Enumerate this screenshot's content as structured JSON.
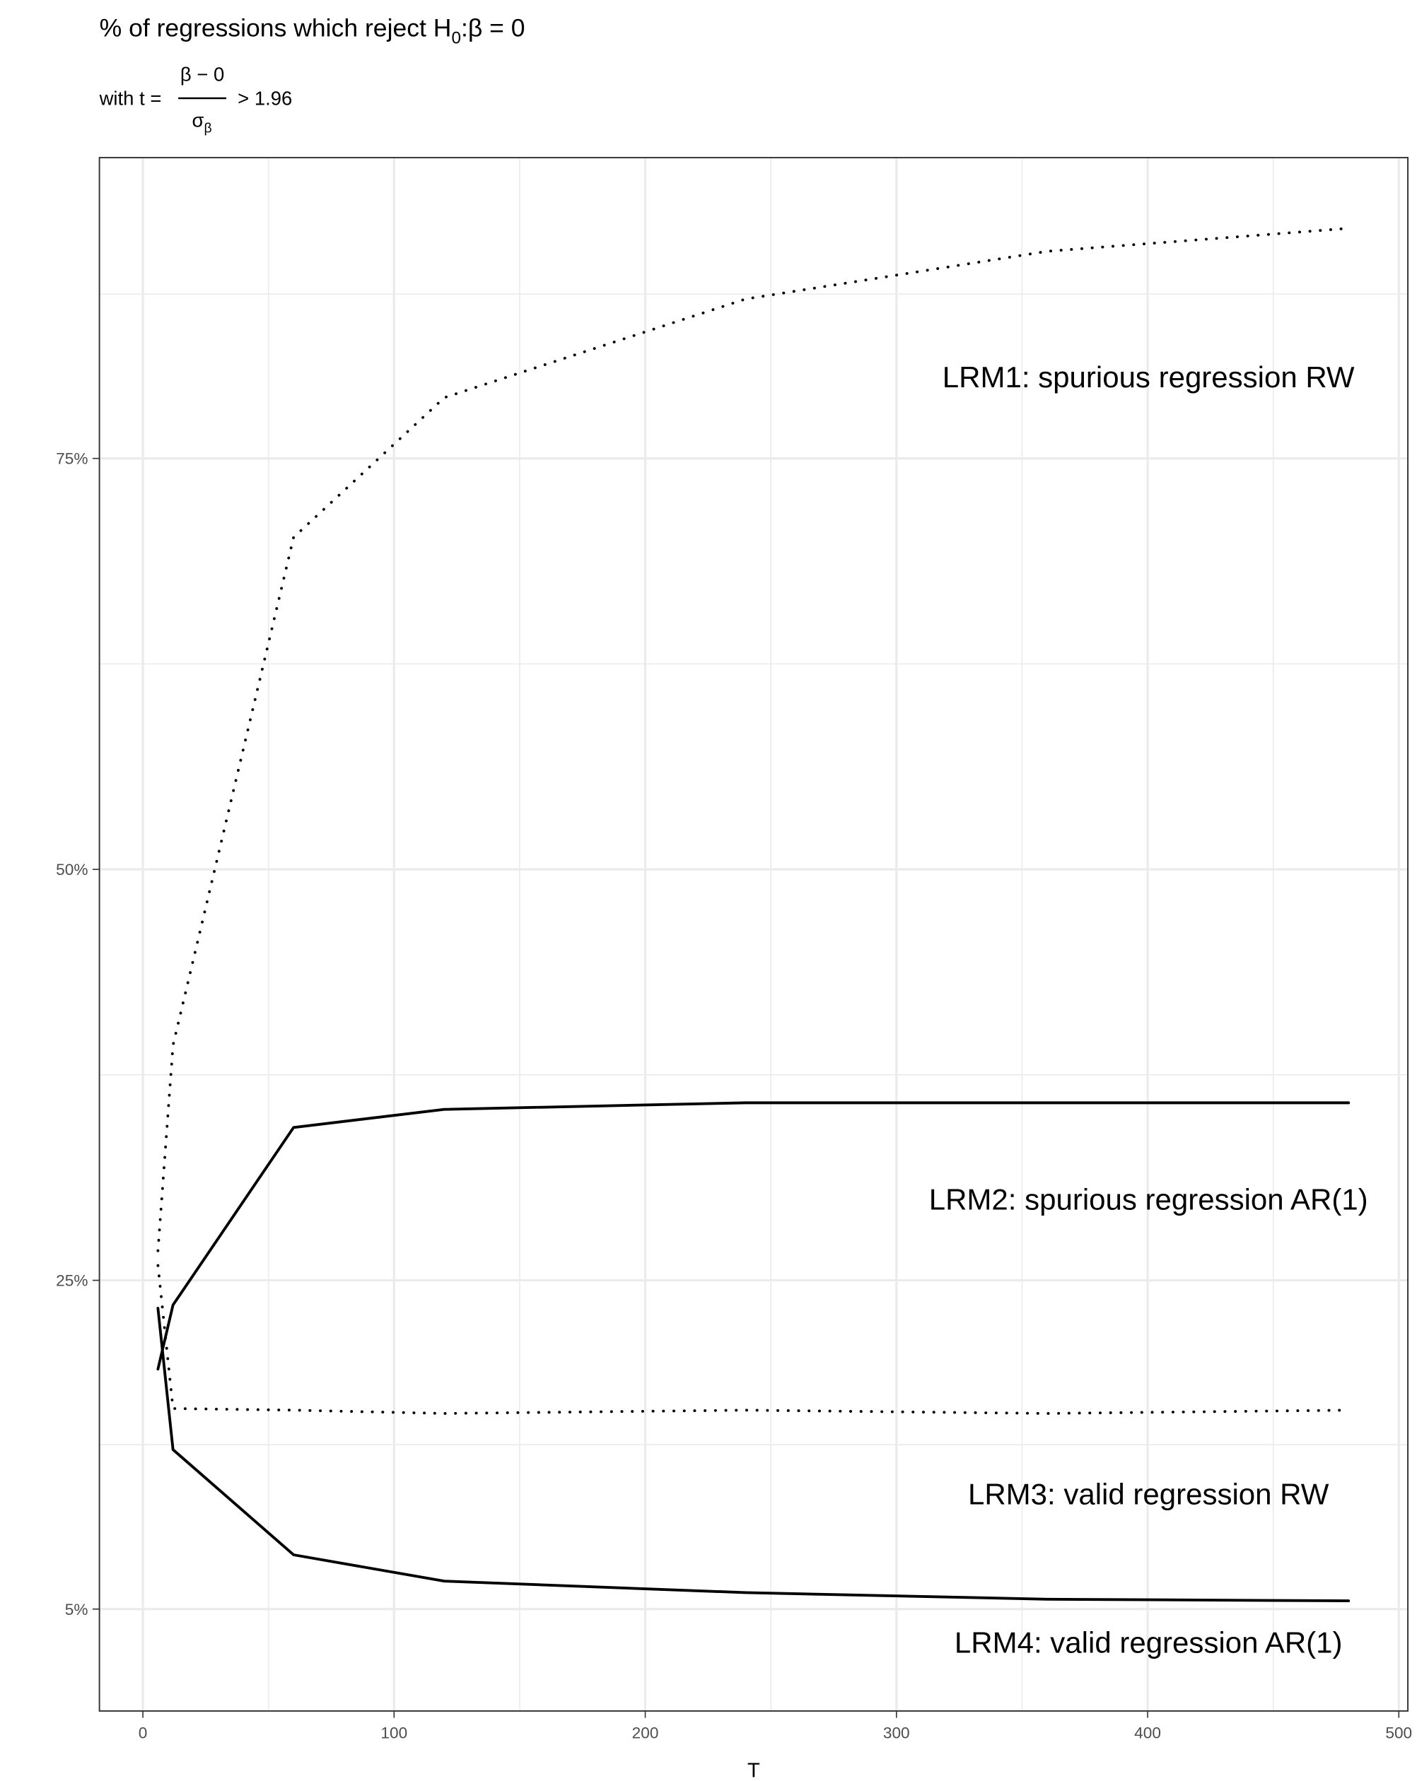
{
  "chart_data": {
    "type": "line",
    "title": [
      "% of regressions which reject H",
      "0",
      ":β = 0"
    ],
    "subtitle": [
      "with t =",
      "β − 0",
      "σ",
      "β",
      "> 1.96"
    ],
    "x_label": "T",
    "x": [
      6,
      12,
      60,
      120,
      240,
      360,
      480
    ],
    "series": [
      {
        "name": "LRM1: spurious regression RW",
        "color": "#000000",
        "dash": "dotted",
        "values": [
          26.8,
          39.3,
          70.2,
          78.7,
          84.7,
          87.6,
          89.0
        ]
      },
      {
        "name": "LRM2: spurious regression AR(1)",
        "color": "#000000",
        "dash": "solid",
        "values": [
          19.6,
          23.5,
          34.3,
          35.4,
          35.8,
          35.8,
          35.8
        ]
      },
      {
        "name": "LRM3: valid regression RW",
        "color": "#000000",
        "dash": "dotted",
        "values": [
          25.9,
          17.2,
          17.1,
          16.9,
          17.1,
          16.9,
          17.1
        ]
      },
      {
        "name": "LRM4: valid regression AR(1)",
        "color": "#000000",
        "dash": "solid",
        "values": [
          23.3,
          14.7,
          8.3,
          6.7,
          6.0,
          5.6,
          5.5
        ]
      }
    ],
    "xlim": [
      -17.3,
      503.6
    ],
    "xticks": [
      0,
      100,
      200,
      300,
      400,
      500
    ],
    "x_minor_ticks": [
      50,
      150,
      250,
      350,
      450
    ],
    "ylim": [
      -1.2,
      93.3
    ],
    "yticks": [
      {
        "value": 5,
        "label": "5%"
      },
      {
        "value": 25,
        "label": "25%"
      },
      {
        "value": 50,
        "label": "50%"
      },
      {
        "value": 75,
        "label": "75%"
      }
    ],
    "y_minor_ticks": [
      15,
      37.5,
      62.5,
      85
    ],
    "grid": true
  }
}
